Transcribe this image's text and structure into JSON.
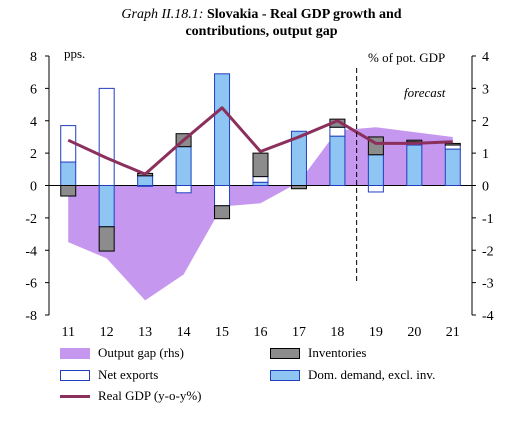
{
  "title": {
    "lead": "Graph II.18.1:",
    "main_line1": "Slovakia - Real GDP growth and",
    "main_line2": "contributions, output gap"
  },
  "colors": {
    "output_gap": "#c597ee",
    "inventories": "#8c8c8c",
    "net_exports": "#ffffff",
    "net_exports_edge": "#1f3fbf",
    "dom_demand": "#8ec5f2",
    "real_gdp": "#8b2f5c"
  },
  "chart_data": {
    "type": "bar",
    "categories": [
      "11",
      "12",
      "13",
      "14",
      "15",
      "16",
      "17",
      "18",
      "19",
      "20",
      "21"
    ],
    "ylabel_left": "pps.",
    "ylabel_right": "% of pot. GDP",
    "ylim_left": [
      -8,
      8
    ],
    "ylim_right": [
      -4,
      4
    ],
    "yticks_left": [
      "8",
      "6",
      "4",
      "2",
      "0",
      "-2",
      "-4",
      "-6",
      "-8"
    ],
    "yticks_right": [
      "4",
      "3",
      "2",
      "1",
      "0",
      "-1",
      "-2",
      "-3",
      "-4"
    ],
    "annotation": "forecast",
    "forecast_from": "19",
    "series": [
      {
        "name": "Output gap (rhs)",
        "kind": "area",
        "axis": "right",
        "values": [
          -1.75,
          -2.25,
          -3.55,
          -2.75,
          -0.65,
          -0.55,
          0.1,
          1.7,
          1.8,
          1.65,
          1.5
        ]
      },
      {
        "name": "Inventories",
        "kind": "bar",
        "values": [
          -0.65,
          -1.5,
          0.15,
          0.8,
          -0.8,
          1.45,
          -0.2,
          0.5,
          1.1,
          0.1,
          0.1
        ]
      },
      {
        "name": "Net exports",
        "kind": "bar",
        "values": [
          2.25,
          6.0,
          -0.05,
          -0.45,
          -1.25,
          0.35,
          0.0,
          0.55,
          -0.4,
          0.2,
          0.25
        ]
      },
      {
        "name": "Dom. demand, excl. inv.",
        "kind": "bar",
        "values": [
          1.45,
          -2.55,
          0.6,
          2.4,
          6.9,
          0.2,
          3.35,
          3.05,
          1.9,
          2.5,
          2.25
        ]
      },
      {
        "name": "Real GDP (y-o-y%)",
        "kind": "line",
        "values": [
          2.8,
          1.7,
          0.7,
          2.8,
          4.8,
          2.1,
          3.0,
          4.0,
          2.6,
          2.6,
          2.7
        ]
      }
    ]
  }
}
